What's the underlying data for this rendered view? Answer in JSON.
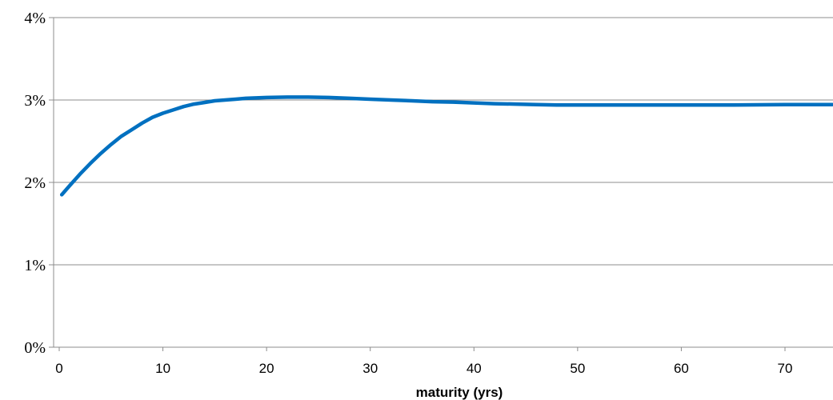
{
  "chart_data": {
    "type": "line",
    "title": "",
    "xlabel": "maturity (yrs)",
    "ylabel": "",
    "xlim": [
      0,
      75
    ],
    "ylim": [
      0,
      4
    ],
    "xticks": [
      0,
      10,
      20,
      30,
      40,
      50,
      60,
      70
    ],
    "xtick_labels": [
      "0",
      "10",
      "20",
      "30",
      "40",
      "50",
      "60",
      "70"
    ],
    "yticks": [
      0,
      1,
      2,
      3,
      4
    ],
    "ytick_labels": [
      "0%",
      "1%",
      "2%",
      "3%",
      "4%"
    ],
    "grid": "horizontal",
    "line_color": "#0070C0",
    "series": [
      {
        "x": [
          0.25,
          1,
          2,
          3,
          4,
          5,
          6,
          7,
          8,
          9,
          10,
          11,
          12,
          13,
          14,
          15,
          16,
          17,
          18,
          19,
          20,
          22,
          24,
          26,
          28,
          30,
          32,
          34,
          36,
          38,
          40,
          42,
          44,
          46,
          48,
          50,
          55,
          60,
          65,
          70,
          75
        ],
        "values": [
          1.85,
          1.96,
          2.1,
          2.23,
          2.35,
          2.46,
          2.56,
          2.64,
          2.72,
          2.79,
          2.84,
          2.88,
          2.92,
          2.95,
          2.97,
          2.99,
          3.0,
          3.01,
          3.02,
          3.025,
          3.03,
          3.035,
          3.035,
          3.03,
          3.02,
          3.01,
          3.0,
          2.99,
          2.98,
          2.975,
          2.965,
          2.955,
          2.95,
          2.945,
          2.94,
          2.94,
          2.94,
          2.94,
          2.94,
          2.945,
          2.945
        ]
      }
    ]
  }
}
